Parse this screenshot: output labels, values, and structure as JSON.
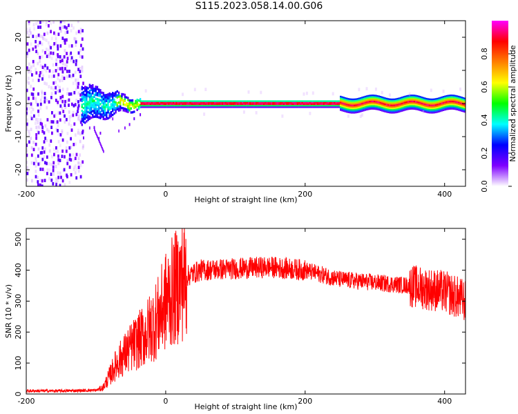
{
  "title": "S115.2023.058.14.00.G06",
  "chart_data": [
    {
      "type": "heatmap",
      "title": "",
      "xlabel": "Height of straight line (km)",
      "ylabel": "Frequency (Hz)",
      "xlim": [
        -200,
        430
      ],
      "ylim": [
        -25,
        25
      ],
      "xticks": [
        -200,
        0,
        200,
        400
      ],
      "yticks": [
        -20,
        -10,
        0,
        10,
        20
      ],
      "colorbar": {
        "label": "Normalized spectral amplitude",
        "range": [
          0,
          1
        ],
        "ticks": [
          0.0,
          0.2,
          0.4,
          0.6,
          0.8
        ],
        "colormap": [
          "#ffffff",
          "#7f00ff",
          "#0000ff",
          "#00ffff",
          "#00ff00",
          "#ffff00",
          "#ff8000",
          "#ff0000",
          "#ff00ff"
        ]
      },
      "features": {
        "carrier_frequency_hz": 0,
        "noise_region_x": [
          -200,
          -120
        ],
        "transition_region_x": [
          -120,
          -35
        ],
        "stable_carrier_x": [
          -35,
          430
        ]
      }
    },
    {
      "type": "line",
      "title": "",
      "xlabel": "Height of straight line (km)",
      "ylabel": "SNR (10 * v/v)",
      "xlim": [
        -200,
        430
      ],
      "ylim": [
        0,
        535
      ],
      "xticks": [
        -200,
        0,
        200,
        400
      ],
      "yticks": [
        0,
        100,
        200,
        300,
        400,
        500
      ],
      "color": "#ff0000",
      "series": [
        {
          "x": [
            -200,
            -150,
            -100,
            -90,
            -70,
            -50,
            -30,
            -10,
            0,
            10,
            20,
            30,
            50,
            100,
            150,
            200,
            250,
            300,
            350,
            400,
            430
          ],
          "y": [
            10,
            10,
            12,
            20,
            100,
            150,
            190,
            250,
            300,
            330,
            360,
            380,
            400,
            405,
            410,
            400,
            370,
            360,
            350,
            330,
            300
          ]
        }
      ]
    }
  ]
}
